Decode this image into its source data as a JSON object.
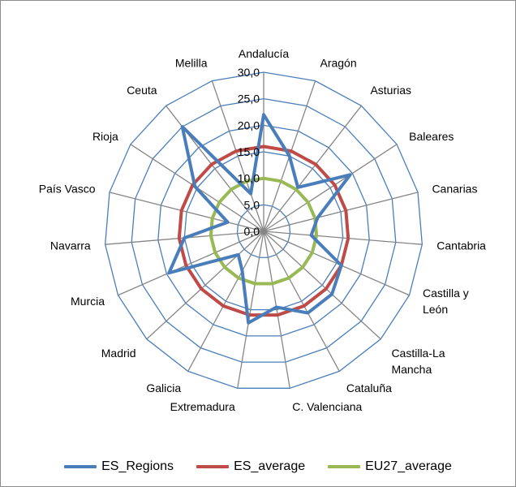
{
  "chart_data": {
    "type": "radar",
    "categories": [
      "Andalucía",
      "Aragón",
      "Asturias",
      "Baleares",
      "Canarias",
      "Cantabria",
      "Castilla y León",
      "Castilla-La Mancha",
      "Cataluña",
      "C. Valenciana",
      "Extremadura",
      "Galicia",
      "Madrid",
      "Murcia",
      "Navarra",
      "País Vasco",
      "Rioja",
      "Ceuta",
      "Melilla"
    ],
    "category_label_lines": [
      [
        "Andalucía"
      ],
      [
        "Aragón"
      ],
      [
        "Asturias"
      ],
      [
        "Baleares"
      ],
      [
        "Canarias"
      ],
      [
        "Cantabria"
      ],
      [
        "Castilla y",
        "León"
      ],
      [
        "Castilla-La",
        "Mancha"
      ],
      [
        "Cataluña"
      ],
      [
        "C. Valenciana"
      ],
      [
        "Extremadura"
      ],
      [
        "Galicia"
      ],
      [
        "Madrid"
      ],
      [
        "Murcia"
      ],
      [
        "Navarra"
      ],
      [
        "País Vasco"
      ],
      [
        "Rioja"
      ],
      [
        "Ceuta"
      ],
      [
        "Melilla"
      ]
    ],
    "series": [
      {
        "name": "ES_Regions",
        "color": "#4a7ebb",
        "values": [
          22.0,
          15.0,
          10.5,
          19.5,
          10.5,
          9.0,
          16.0,
          17.5,
          17.5,
          14.5,
          17.5,
          8.5,
          6.5,
          19.5,
          15.0,
          7.0,
          15.5,
          25.0,
          7.5
        ]
      },
      {
        "name": "ES_average",
        "color": "#be4b48",
        "values": [
          16.0,
          16.0,
          16.0,
          16.0,
          16.0,
          16.0,
          16.0,
          16.0,
          16.0,
          16.0,
          16.0,
          16.0,
          16.0,
          16.0,
          16.0,
          16.0,
          16.0,
          16.0,
          16.0
        ]
      },
      {
        "name": "EU27_average",
        "color": "#98b954",
        "values": [
          10.0,
          10.0,
          10.0,
          10.0,
          10.0,
          10.0,
          10.0,
          10.0,
          10.0,
          10.0,
          10.0,
          10.0,
          10.0,
          10.0,
          10.0,
          10.0,
          10.0,
          10.0,
          10.0
        ]
      }
    ],
    "rlim": [
      0,
      30
    ],
    "ticks": [
      "0,0",
      "5,0",
      "10,0",
      "15,0",
      "20,0",
      "25,0",
      "30,0"
    ],
    "grid": true,
    "grid_color": "#4a7ebb",
    "spoke_color": "#868686",
    "legend_position": "bottom"
  }
}
